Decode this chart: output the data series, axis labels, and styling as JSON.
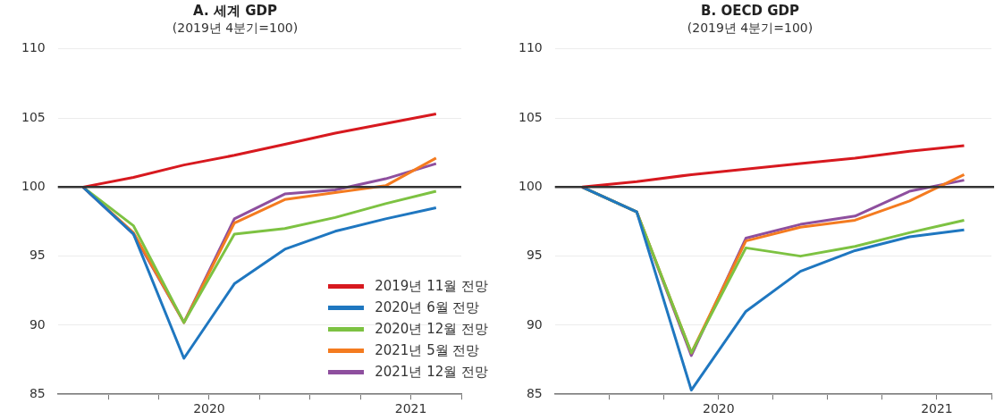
{
  "chart_data": [
    {
      "type": "line",
      "title": "A. 세계 GDP",
      "subtitle": "(2019년 4분기=100)",
      "x": [
        2019.875,
        2020.125,
        2020.375,
        2020.625,
        2020.875,
        2021.125,
        2021.375,
        2021.625
      ],
      "series": [
        {
          "name": "2019년 11월 전망",
          "color": "#d7191f",
          "values": [
            100,
            100.7,
            101.6,
            102.3,
            103.1,
            103.9,
            104.6,
            105.3
          ]
        },
        {
          "name": "2020년 6월 전망",
          "color": "#1f77c0",
          "values": [
            100,
            96.6,
            87.6,
            93.0,
            95.5,
            96.8,
            97.7,
            98.5
          ]
        },
        {
          "name": "2020년 12월 전망",
          "color": "#7dc242",
          "values": [
            100,
            97.2,
            90.2,
            96.6,
            97.0,
            97.8,
            98.8,
            99.7
          ]
        },
        {
          "name": "2021년 5월 전망",
          "color": "#f47b20",
          "values": [
            100,
            96.7,
            90.2,
            97.4,
            99.1,
            99.6,
            100.1,
            102.1
          ]
        },
        {
          "name": "2021년 12월 전망",
          "color": "#8e4f9e",
          "values": [
            100,
            96.6,
            90.2,
            97.7,
            99.5,
            99.8,
            100.6,
            101.7
          ]
        }
      ],
      "xlim": [
        2019.75,
        2021.75
      ],
      "xticks": [
        {
          "value": 2020,
          "label": null
        },
        {
          "value": 2020.25,
          "label": null
        },
        {
          "value": 2020.5,
          "label": "2020"
        },
        {
          "value": 2020.75,
          "label": null
        },
        {
          "value": 2021,
          "label": null
        },
        {
          "value": 2021.25,
          "label": null
        },
        {
          "value": 2021.5,
          "label": "2021"
        },
        {
          "value": 2021.75,
          "label": null
        }
      ],
      "ylim": [
        85,
        110
      ],
      "yticks": [
        85,
        90,
        95,
        100,
        105,
        110
      ],
      "grid": "y",
      "legend": "bottom right",
      "marker": "none",
      "line_style": "solid",
      "ref_lines": [
        {
          "axis": "y",
          "value": 100,
          "color": "#333333"
        }
      ]
    },
    {
      "type": "line",
      "title": "B. OECD GDP",
      "subtitle": "(2019년 4분기=100)",
      "x": [
        2019.875,
        2020.125,
        2020.375,
        2020.625,
        2020.875,
        2021.125,
        2021.375,
        2021.625
      ],
      "series": [
        {
          "color": "#d7191f",
          "values": [
            100,
            100.4,
            100.9,
            101.3,
            101.7,
            102.1,
            102.6,
            103.0
          ]
        },
        {
          "color": "#1f77c0",
          "values": [
            100,
            98.2,
            85.3,
            91.0,
            93.9,
            95.4,
            96.4,
            96.9
          ]
        },
        {
          "color": "#7dc242",
          "values": [
            100,
            98.2,
            88.0,
            95.6,
            95.0,
            95.7,
            96.7,
            97.6
          ]
        },
        {
          "color": "#f47b20",
          "values": [
            100,
            98.2,
            88.0,
            96.1,
            97.1,
            97.6,
            99.0,
            100.9
          ]
        },
        {
          "color": "#8e4f9e",
          "values": [
            100,
            98.2,
            87.8,
            96.3,
            97.3,
            97.9,
            99.7,
            100.5
          ]
        }
      ],
      "xlim": [
        2019.75,
        2021.75
      ],
      "xticks": [
        {
          "value": 2020,
          "label": null
        },
        {
          "value": 2020.25,
          "label": null
        },
        {
          "value": 2020.5,
          "label": "2020"
        },
        {
          "value": 2020.75,
          "label": null
        },
        {
          "value": 2021,
          "label": null
        },
        {
          "value": 2021.25,
          "label": null
        },
        {
          "value": 2021.5,
          "label": "2021"
        },
        {
          "value": 2021.75,
          "label": null
        }
      ],
      "ylim": [
        85,
        110
      ],
      "yticks": [
        85,
        90,
        95,
        100,
        105,
        110
      ],
      "grid": "y",
      "legend": false,
      "marker": "none",
      "line_style": "solid",
      "ref_lines": [
        {
          "axis": "y",
          "value": 100,
          "color": "#333333"
        }
      ]
    }
  ]
}
